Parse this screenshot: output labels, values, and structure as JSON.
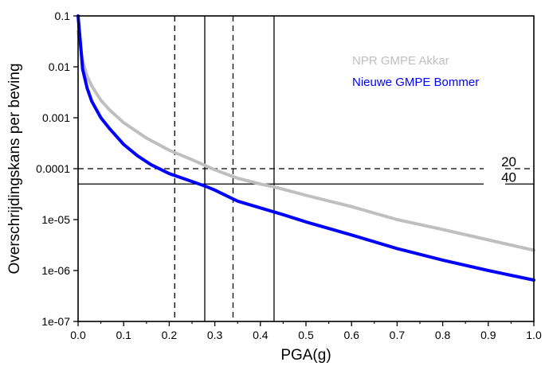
{
  "chart_data": {
    "type": "line",
    "xlabel": "PGA(g)",
    "ylabel": "Overschrijdingskans per beving",
    "xlim": [
      0,
      1.0
    ],
    "ylim": [
      1e-07,
      0.1
    ],
    "yscale": "log",
    "grid": false,
    "legend": "top-right",
    "x_ticks": [
      "0.0",
      "0.1",
      "0.2",
      "0.3",
      "0.4",
      "0.5",
      "0.6",
      "0.7",
      "0.8",
      "0.9",
      "1.0"
    ],
    "y_ticks": [
      "1e-07",
      "1e-06",
      "1e-05",
      "0.0001",
      "0.001",
      "0.01",
      "0.1"
    ],
    "series": [
      {
        "name": "NPR GMPE Akkar",
        "color": "#bfbfbf",
        "x": [
          0.0,
          0.005,
          0.01,
          0.02,
          0.03,
          0.05,
          0.07,
          0.1,
          0.15,
          0.2,
          0.25,
          0.3,
          0.35,
          0.4,
          0.43,
          0.5,
          0.6,
          0.7,
          0.8,
          0.9,
          1.0
        ],
        "y": [
          0.05,
          0.025,
          0.013,
          0.0065,
          0.0042,
          0.0022,
          0.0014,
          0.0008,
          0.0004,
          0.00023,
          0.00015,
          9.5e-05,
          6.5e-05,
          5e-05,
          4.4e-05,
          3e-05,
          1.8e-05,
          1e-05,
          6.4e-06,
          4e-06,
          2.5e-06
        ]
      },
      {
        "name": "Nieuwe GMPE Bommer",
        "color": "#0000ff",
        "x": [
          0.0,
          0.005,
          0.01,
          0.02,
          0.03,
          0.05,
          0.07,
          0.1,
          0.13,
          0.16,
          0.2,
          0.25,
          0.28,
          0.3,
          0.35,
          0.4,
          0.45,
          0.5,
          0.6,
          0.7,
          0.8,
          0.9,
          1.0
        ],
        "y": [
          0.1,
          0.03,
          0.009,
          0.0038,
          0.0021,
          0.001,
          0.0006,
          0.0003,
          0.00018,
          0.00012,
          8e-05,
          5.6e-05,
          4.5e-05,
          3.8e-05,
          2.3e-05,
          1.7e-05,
          1.25e-05,
          9e-06,
          5e-06,
          2.7e-06,
          1.6e-06,
          1e-06,
          6.5e-07
        ]
      }
    ],
    "reference_lines": [
      {
        "axis": "y",
        "value": 0.0001,
        "style": "dashed",
        "label": "20"
      },
      {
        "axis": "y",
        "value": 5e-05,
        "style": "solid",
        "label": "40"
      },
      {
        "axis": "x",
        "value": 0.212,
        "style": "dashed"
      },
      {
        "axis": "x",
        "value": 0.34,
        "style": "dashed"
      },
      {
        "axis": "x",
        "value": 0.278,
        "style": "solid"
      },
      {
        "axis": "x",
        "value": 0.43,
        "style": "solid"
      }
    ]
  }
}
